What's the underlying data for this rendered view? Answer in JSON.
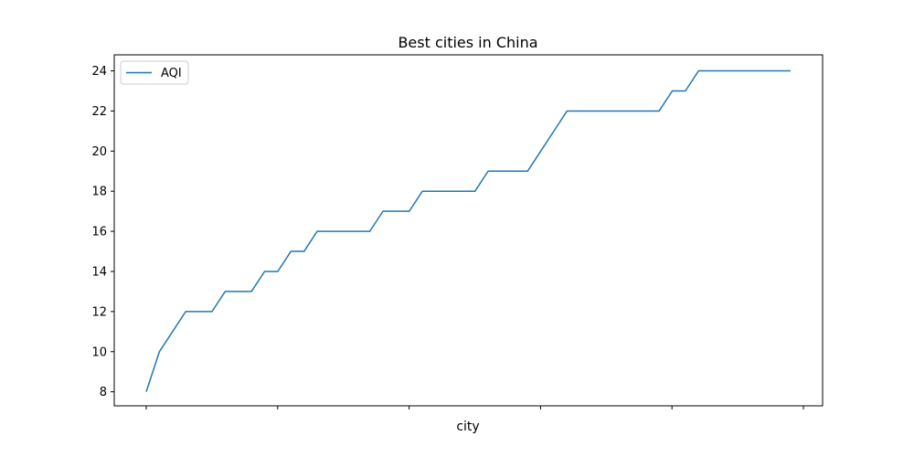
{
  "chart_data": {
    "type": "line",
    "title": "Best cities in China",
    "xlabel": "city",
    "ylabel": "",
    "ylim": [
      7.3,
      24.8
    ],
    "yticks": [
      8,
      10,
      12,
      14,
      16,
      18,
      20,
      22,
      24
    ],
    "x_tick_count": 6,
    "x_tick_labels": [],
    "legend_position": "upper-left",
    "grid": false,
    "series": [
      {
        "name": "AQI",
        "color": "#1f77b4",
        "values": [
          8,
          10,
          11,
          12,
          12,
          12,
          13,
          13,
          13,
          14,
          14,
          15,
          15,
          16,
          16,
          16,
          16,
          16,
          17,
          17,
          17,
          18,
          18,
          18,
          18,
          18,
          19,
          19,
          19,
          19,
          20,
          21,
          22,
          22,
          22,
          22,
          22,
          22,
          22,
          22,
          23,
          23,
          24,
          24,
          24,
          24,
          24,
          24,
          24,
          24
        ]
      }
    ]
  }
}
